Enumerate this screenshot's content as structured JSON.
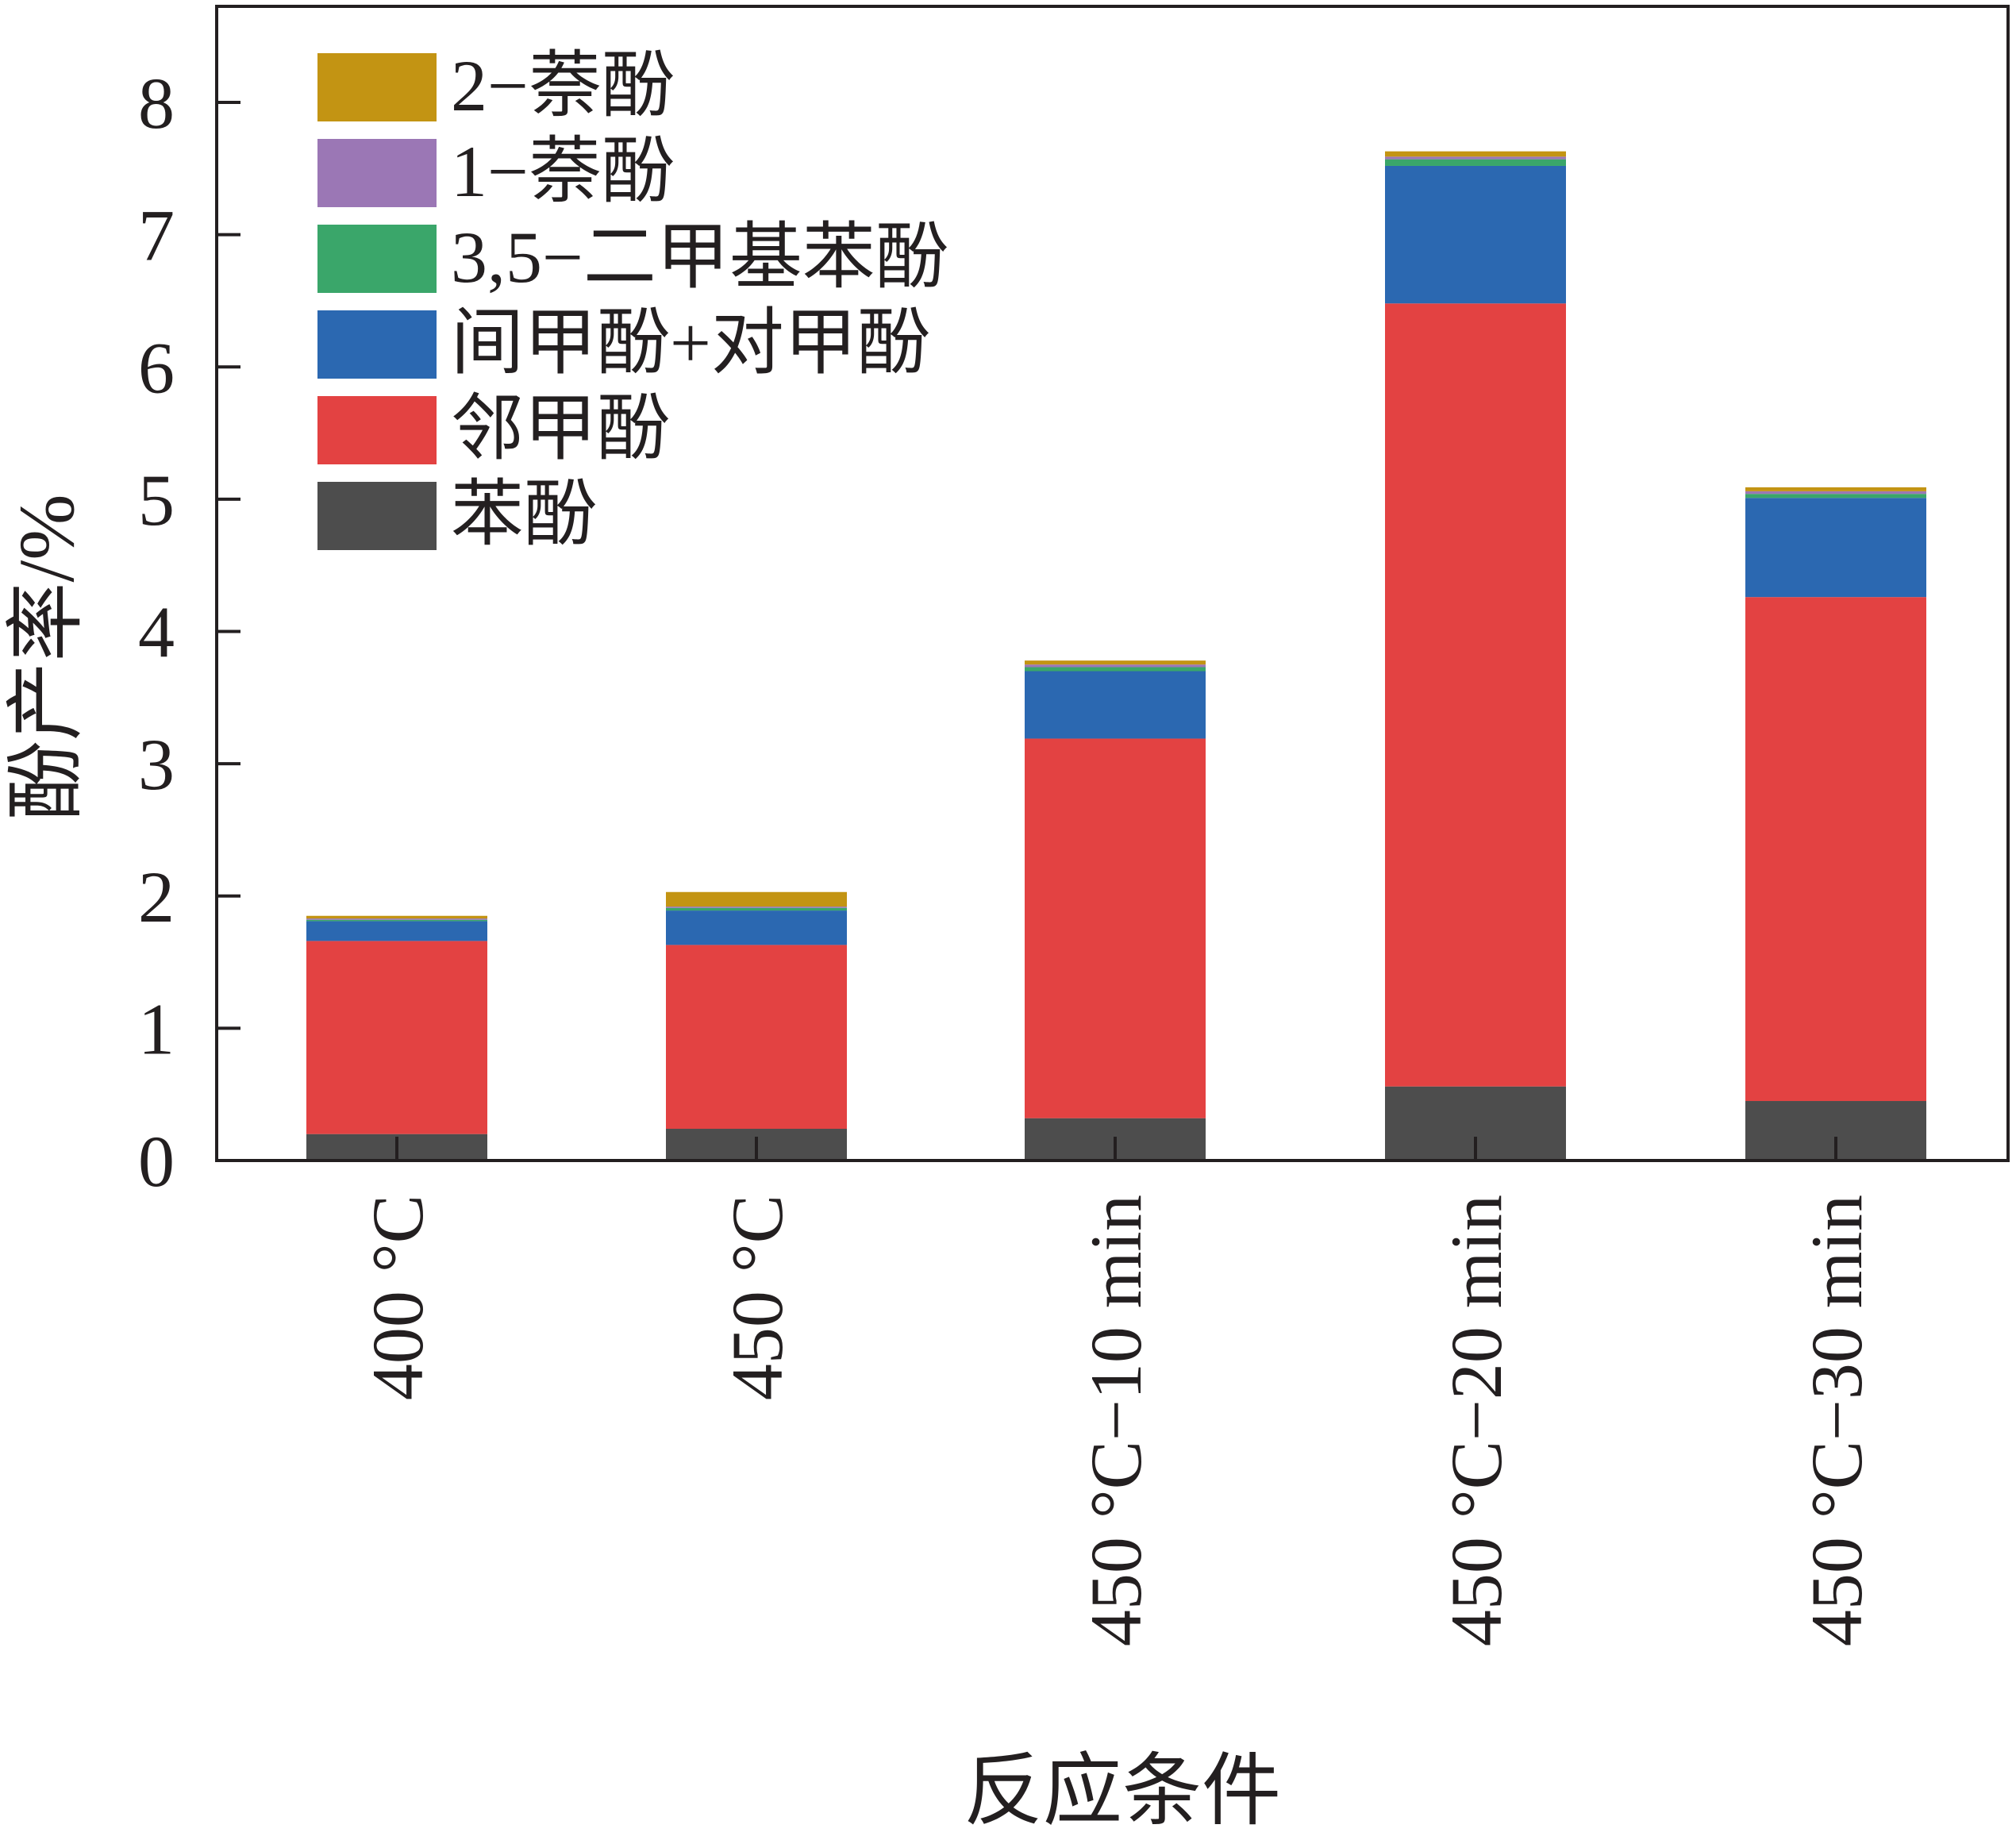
{
  "chart_data": {
    "type": "bar",
    "stacked": true,
    "xlabel": "反应条件",
    "ylabel": "酚产率/%",
    "ylim": [
      0,
      8.6
    ],
    "yticks": [
      0,
      1,
      2,
      3,
      4,
      5,
      6,
      7,
      8
    ],
    "grid": false,
    "legend_position": "top-left",
    "categories": [
      "400 °C",
      "450 °C",
      "450 °C−10 min",
      "450 °C−20 min",
      "450 °C−30 min"
    ],
    "series": [
      {
        "name": "苯酚",
        "color": "#4d4d4d",
        "values": [
          0.2,
          0.24,
          0.32,
          0.56,
          0.45
        ]
      },
      {
        "name": "邻甲酚",
        "color": "#e34242",
        "values": [
          1.46,
          1.39,
          2.87,
          5.92,
          3.81
        ]
      },
      {
        "name": "间甲酚+对甲酚",
        "color": "#2b68b1",
        "values": [
          0.15,
          0.26,
          0.51,
          1.04,
          0.75
        ]
      },
      {
        "name": "3,5−二甲基苯酚",
        "color": "#3aa66a",
        "values": [
          0.01,
          0.02,
          0.03,
          0.05,
          0.03
        ]
      },
      {
        "name": "1−萘酚",
        "color": "#9b77b5",
        "values": [
          0.01,
          0.01,
          0.02,
          0.02,
          0.02
        ]
      },
      {
        "name": "2−萘酚",
        "color": "#c39413",
        "values": [
          0.02,
          0.11,
          0.03,
          0.04,
          0.03
        ]
      }
    ]
  }
}
